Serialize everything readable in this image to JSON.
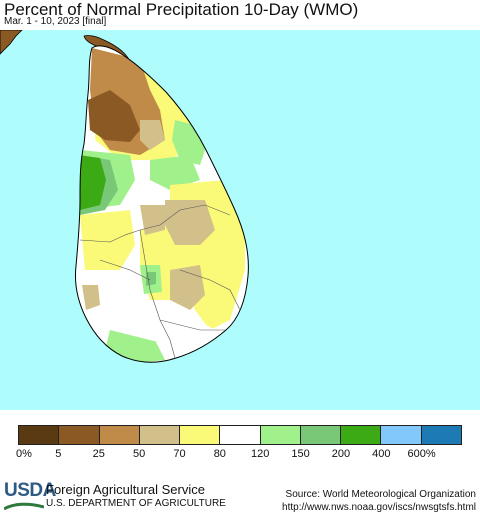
{
  "header": {
    "title": "Percent of Normal Precipitation 10-Day (WMO)",
    "subtitle": "Mar. 1 - 10, 2023 [final]"
  },
  "map": {
    "ocean_color": "#aefcfc",
    "land_color": "#ffffff"
  },
  "legend": {
    "colors": [
      "#5a3a12",
      "#8b5a24",
      "#c08a48",
      "#d2c08a",
      "#fafa78",
      "#ffffff",
      "#a0f08c",
      "#78c878",
      "#3caa14",
      "#82c8fa",
      "#1e7ab4"
    ],
    "ticks": [
      "0%",
      "5",
      "25",
      "50",
      "70",
      "80",
      "120",
      "150",
      "200",
      "400",
      "600%"
    ]
  },
  "footer": {
    "logo": "USDA",
    "agency": "Foreign Agricultural Service",
    "department": "U.S. DEPARTMENT OF AGRICULTURE",
    "source": "Source: World Meteorological Organization",
    "url": "http://www.nws.noaa.gov/iscs/nwsgtsfs.html"
  }
}
